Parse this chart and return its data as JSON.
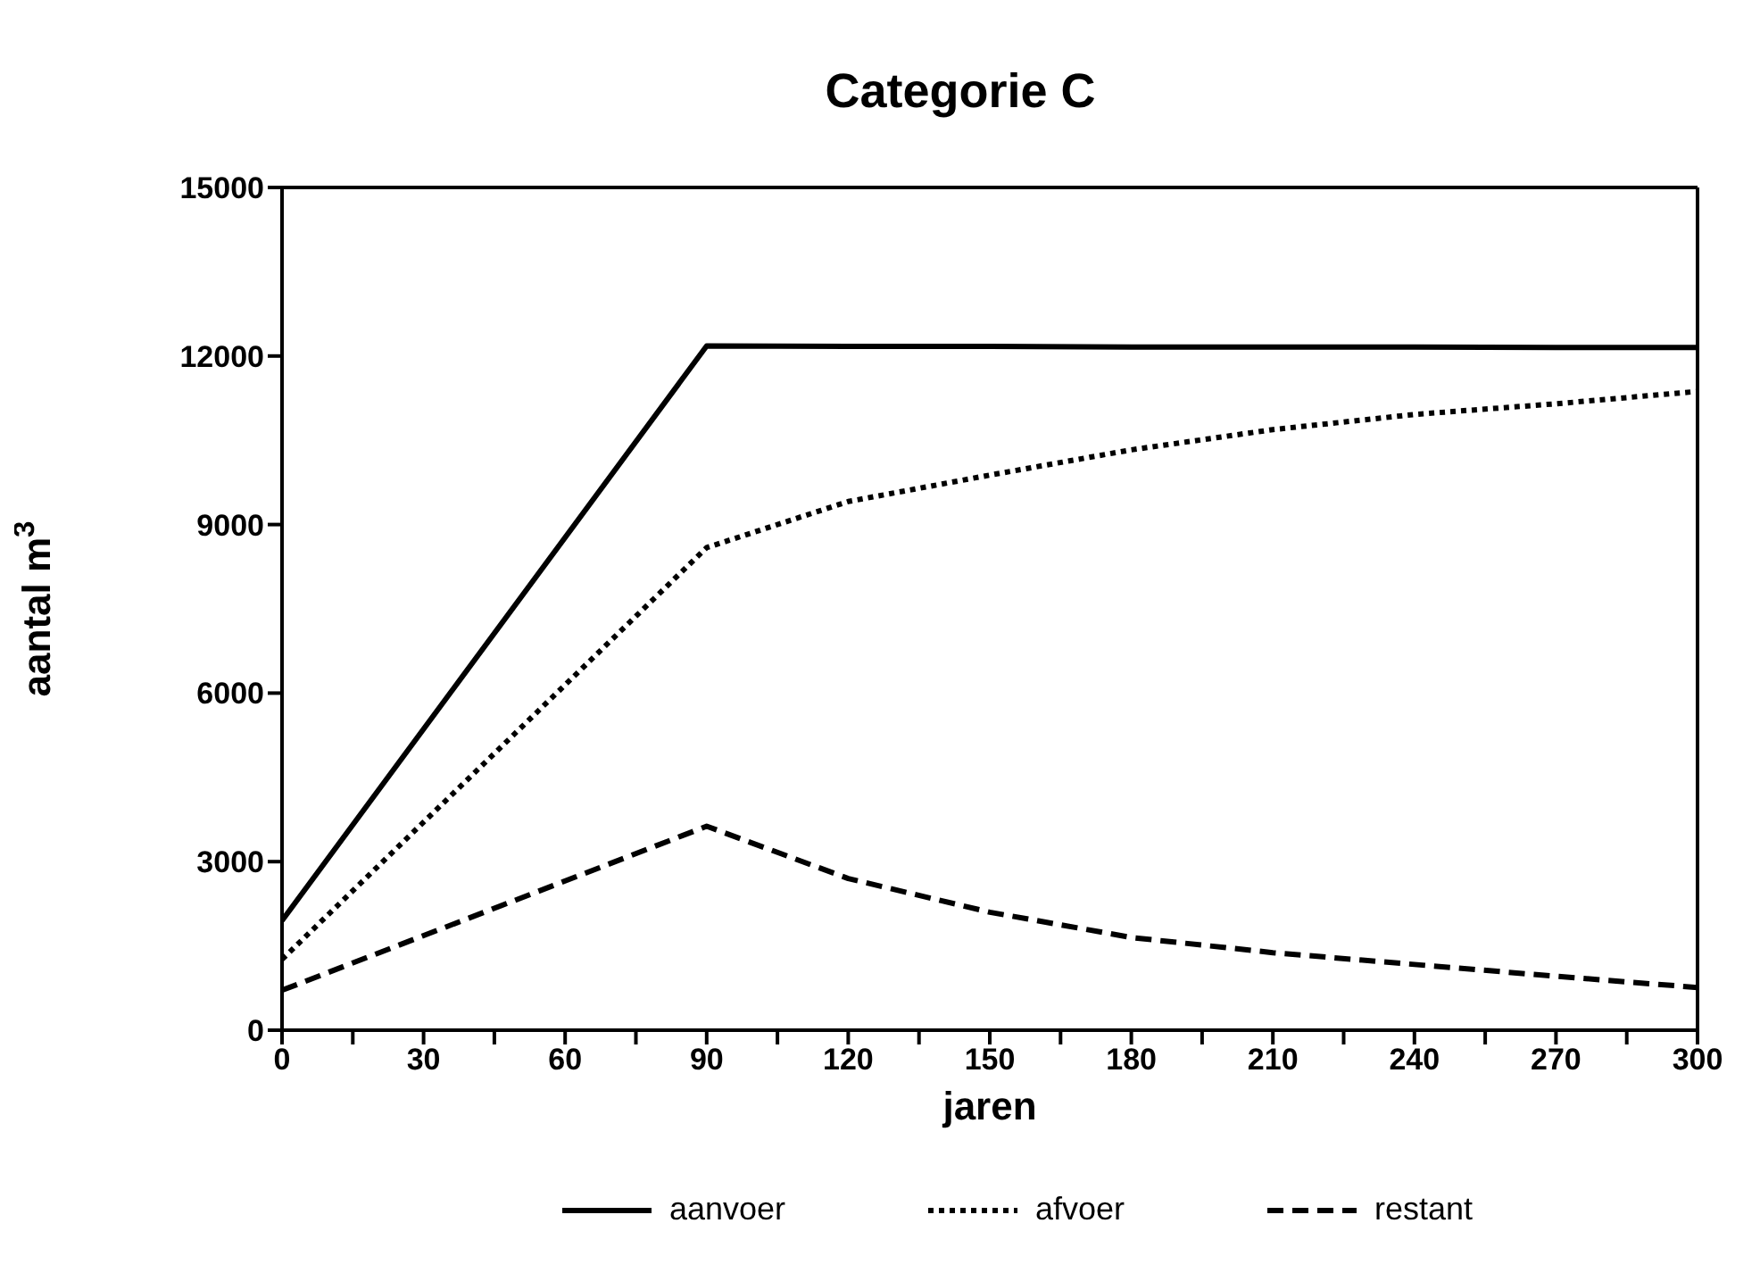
{
  "chart_data": {
    "type": "line",
    "title": "Categorie  C",
    "xlabel": "jaren",
    "ylabel": "aantal  m$^{3}$",
    "x": [
      0,
      90,
      120,
      150,
      180,
      210,
      240,
      270,
      300
    ],
    "series": [
      {
        "name": "aanvoer",
        "color": "#000000",
        "line_style": "solid",
        "values": [
          1950,
          12180,
          12170,
          12170,
          12160,
          12160,
          12160,
          12150,
          12150
        ]
      },
      {
        "name": "afvoer",
        "color": "#000000",
        "line_style": "dotted",
        "values": [
          1260,
          8590,
          9410,
          9880,
          10330,
          10690,
          10960,
          11150,
          11370
        ]
      },
      {
        "name": "restant",
        "color": "#000000",
        "line_style": "dashed",
        "values": [
          710,
          3630,
          2700,
          2100,
          1650,
          1380,
          1170,
          960,
          760
        ]
      }
    ],
    "xlim": [
      0,
      300
    ],
    "xticks": [
      0,
      {
        "value": 15,
        "label": null
      },
      30,
      {
        "value": 45,
        "label": null
      },
      60,
      {
        "value": 75,
        "label": null
      },
      90,
      {
        "value": 105,
        "label": null
      },
      120,
      {
        "value": 135,
        "label": null
      },
      150,
      {
        "value": 165,
        "label": null
      },
      180,
      {
        "value": 195,
        "label": null
      },
      210,
      {
        "value": 225,
        "label": null
      },
      240,
      {
        "value": 255,
        "label": null
      },
      270,
      {
        "value": 285,
        "label": null
      },
      300
    ],
    "ylim": [
      0,
      15000
    ],
    "yticks": [
      0,
      3000,
      6000,
      9000,
      12000,
      15000
    ],
    "legend": "bottom",
    "marker": "none"
  }
}
